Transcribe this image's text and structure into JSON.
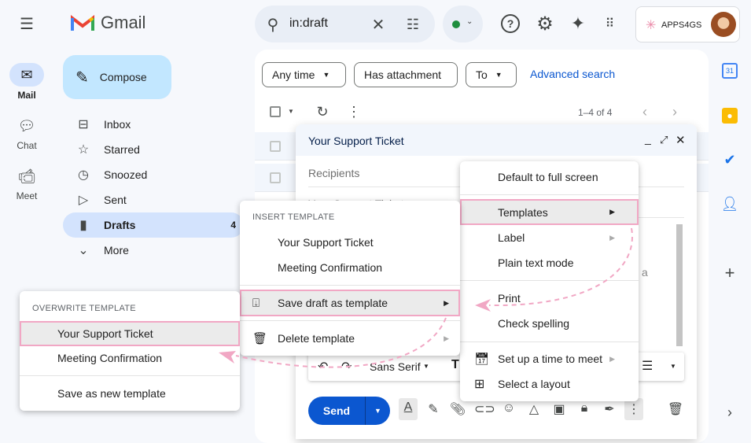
{
  "rail": {
    "items": [
      {
        "label": "Mail",
        "icon": "mail-icon"
      },
      {
        "label": "Chat",
        "icon": "chat-icon"
      },
      {
        "label": "Meet",
        "icon": "meet-icon"
      }
    ]
  },
  "logo": {
    "text": "Gmail"
  },
  "search": {
    "value": "in:draft"
  },
  "account": {
    "brand": "APPS4GS"
  },
  "compose_label": "Compose",
  "nav": [
    {
      "label": "Inbox"
    },
    {
      "label": "Starred"
    },
    {
      "label": "Snoozed"
    },
    {
      "label": "Sent"
    },
    {
      "label": "Drafts",
      "count": "4"
    },
    {
      "label": "More"
    }
  ],
  "filters": {
    "any_time": "Any time",
    "has_attachment": "Has attachment",
    "to": "To",
    "advanced": "Advanced search"
  },
  "pagination": "1–4 of 4",
  "compose": {
    "title": "Your Support Ticket",
    "recipients": "Recipients",
    "subject": "Your Support Ticket",
    "body_fragment": "a",
    "font": "Sans Serif",
    "send": "Send"
  },
  "more_menu": {
    "items": [
      "Default to full screen",
      "Templates",
      "Label",
      "Plain text mode",
      "Print",
      "Check spelling",
      "Set up a time to meet",
      "Select a layout"
    ]
  },
  "templates_menu": {
    "header": "INSERT TEMPLATE",
    "items": [
      "Your Support Ticket",
      "Meeting Confirmation"
    ],
    "save": "Save draft as template",
    "delete": "Delete template"
  },
  "overwrite_menu": {
    "header": "OVERWRITE TEMPLATE",
    "items": [
      "Your Support Ticket",
      "Meeting Confirmation"
    ],
    "new": "Save as new template"
  },
  "colors": {
    "accent": "#0b57d0",
    "highlight": "#f1a7c4",
    "compose_btn": "#c2e7ff",
    "drafts_active": "#d3e3fd"
  }
}
